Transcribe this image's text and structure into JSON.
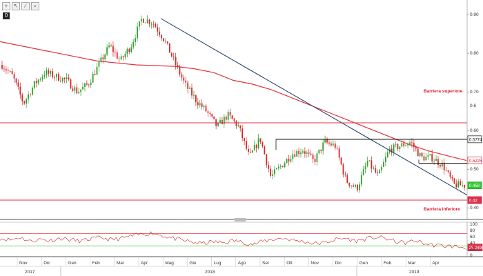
{
  "toolbar": {
    "icons": [
      "crosshair-icon",
      "cursor-icon",
      "draw-icon",
      "zoom-icon"
    ],
    "zero_label": "0"
  },
  "colors": {
    "price_up": "#2ca02c",
    "price_down": "#d62728",
    "ma": "#e0303a",
    "trend": "#2e4a6b",
    "barrier": "#e0304a",
    "support": "#111111",
    "osc": "#cc2222",
    "osc_upper": "#e04040",
    "osc_lower": "#33bb33"
  },
  "chart_data": [
    {
      "type": "candlestick",
      "y_ticks": [
        "0.90",
        "0.80",
        "0.70",
        "0.60",
        "0.50",
        "0.40"
      ],
      "ylim": [
        0.37,
        0.92
      ],
      "x_months": [
        "Nov",
        "Dic",
        "Gen",
        "Feb",
        "Mar",
        "Apr",
        "Mag",
        "Giu",
        "Lug",
        "Ago",
        "Set",
        "Ott",
        "Nov",
        "Dic",
        "Gen",
        "Feb",
        "Mar",
        "Apr"
      ],
      "x_years": [
        "2017",
        "2018",
        "2019"
      ],
      "price_path": [
        0.77,
        0.74,
        0.67,
        0.72,
        0.75,
        0.74,
        0.73,
        0.7,
        0.72,
        0.77,
        0.82,
        0.78,
        0.82,
        0.89,
        0.88,
        0.84,
        0.78,
        0.72,
        0.68,
        0.65,
        0.61,
        0.64,
        0.61,
        0.53,
        0.58,
        0.48,
        0.51,
        0.54,
        0.55,
        0.52,
        0.57,
        0.56,
        0.47,
        0.45,
        0.52,
        0.48,
        0.55,
        0.56,
        0.57,
        0.53,
        0.53,
        0.51,
        0.46,
        0.458
      ],
      "moving_average_path": [
        0.83,
        0.82,
        0.81,
        0.8,
        0.79,
        0.78,
        0.775,
        0.77,
        0.768,
        0.766,
        0.76,
        0.75,
        0.73,
        0.72,
        0.705,
        0.685,
        0.665,
        0.645,
        0.625,
        0.605,
        0.585,
        0.565,
        0.548,
        0.535,
        0.5225
      ],
      "trendline": {
        "from": [
          "Apr",
          0.89
        ],
        "to": [
          "Apr",
          0.43
        ]
      },
      "horizontal_levels": [
        {
          "name": "Barriera superiore",
          "value": 0.62
        },
        {
          "name": "Barriera inferiore",
          "value": 0.42
        },
        {
          "name": "support_upper",
          "value": 0.5774
        },
        {
          "name": "support_lower",
          "value": 0.515
        }
      ],
      "badges": [
        {
          "label": "0.5774",
          "value": 0.5774
        },
        {
          "label": "0.5225",
          "value": 0.5225
        },
        {
          "label": "0.458",
          "value": 0.458
        },
        {
          "label": "0.42",
          "value": 0.42
        }
      ],
      "annotations": [
        "Barriera superiore",
        "Barriera inferiore"
      ],
      "axis_extra": "0.6"
    },
    {
      "type": "line",
      "y_ticks": [
        "100",
        "80",
        "60",
        "40",
        "20",
        "0"
      ],
      "ylim": [
        0,
        100
      ],
      "upper_level": 70,
      "lower_level": 30,
      "badge": "25.2496",
      "values": [
        55,
        50,
        58,
        45,
        52,
        48,
        55,
        50,
        46,
        53,
        57,
        50,
        55,
        62,
        68,
        72,
        64,
        55,
        48,
        42,
        38,
        44,
        40,
        48,
        42,
        35,
        46,
        52,
        55,
        48,
        44,
        38,
        40,
        50,
        55,
        46,
        52,
        58,
        55,
        44,
        40,
        48,
        36,
        32,
        30,
        28,
        25
      ]
    }
  ]
}
